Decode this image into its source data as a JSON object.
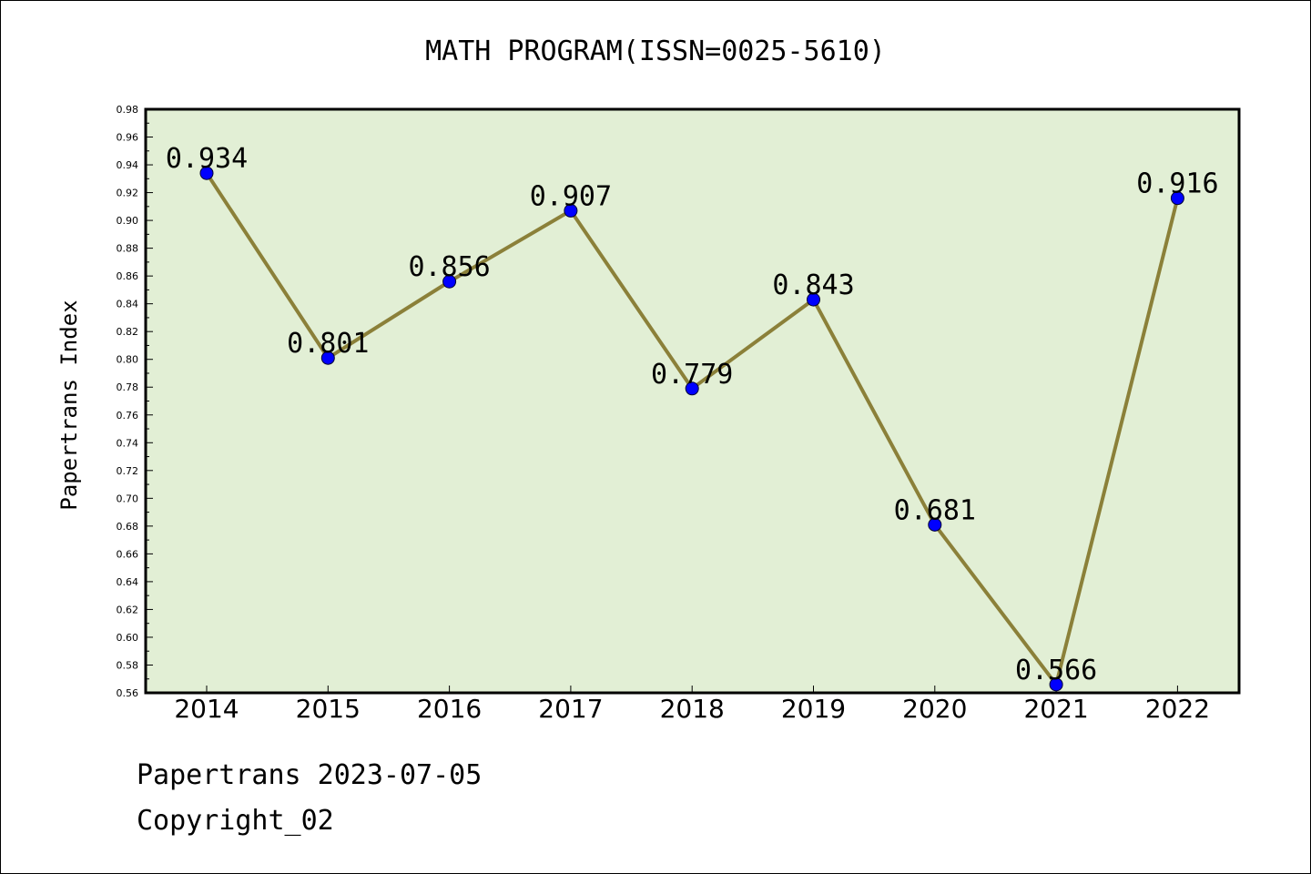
{
  "footer": {
    "line1": "Papertrans 2023-07-05",
    "line2": "Copyright_02"
  },
  "chart_data": {
    "type": "line",
    "title": "MATH PROGRAM(ISSN=0025-5610)",
    "xlabel": "",
    "ylabel": "Papertrans Index",
    "categories": [
      "2014",
      "2015",
      "2016",
      "2017",
      "2018",
      "2019",
      "2020",
      "2021",
      "2022"
    ],
    "series": [
      {
        "values": [
          0.934,
          0.801,
          0.856,
          0.907,
          0.779,
          0.843,
          0.681,
          0.566,
          0.916
        ],
        "labels": [
          "0.934",
          "0.801",
          "0.856",
          "0.907",
          "0.779",
          "0.843",
          "0.681",
          "0.566",
          "0.916"
        ]
      }
    ],
    "ylim": [
      0.56,
      0.98
    ],
    "yticks": [
      "0.56",
      "0.58",
      "0.60",
      "0.62",
      "0.64",
      "0.66",
      "0.68",
      "0.70",
      "0.72",
      "0.74",
      "0.76",
      "0.78",
      "0.80",
      "0.82",
      "0.84",
      "0.86",
      "0.88",
      "0.90",
      "0.92",
      "0.94",
      "0.96",
      "0.98"
    ],
    "grid": false,
    "colors": {
      "plot_background": "#e2efd5",
      "line": "#8b8039",
      "marker": "#0000ff"
    }
  }
}
